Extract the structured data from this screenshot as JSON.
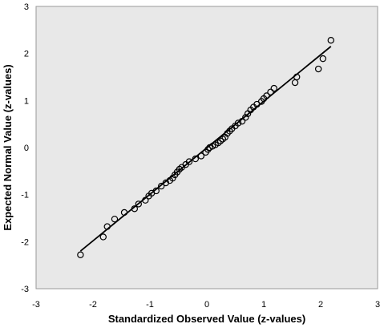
{
  "chart_data": {
    "type": "scatter",
    "xlabel": "Standardized Observed Value (z-values)",
    "ylabel": "Expected Normal Value (z-values)",
    "xlim": [
      -3,
      3
    ],
    "ylim": [
      -3,
      3
    ],
    "x_ticks": [
      "-3",
      "-2",
      "-1",
      "0",
      "1",
      "2",
      "3"
    ],
    "y_ticks": [
      "3",
      "2",
      "1",
      "0",
      "-1",
      "-2",
      "-3"
    ],
    "grid": false,
    "legend": "none",
    "colors": {
      "plot_background": "#e8e8e8",
      "marker_stroke": "#000000",
      "line": "#000000"
    },
    "reference_line": {
      "x": [
        -2.22,
        2.18
      ],
      "y": [
        -2.2,
        2.15
      ]
    },
    "series": [
      {
        "points": [
          [
            -2.22,
            -2.28
          ],
          [
            -1.82,
            -1.9
          ],
          [
            -1.75,
            -1.68
          ],
          [
            -1.62,
            -1.52
          ],
          [
            -1.45,
            -1.38
          ],
          [
            -1.27,
            -1.3
          ],
          [
            -1.2,
            -1.2
          ],
          [
            -1.08,
            -1.12
          ],
          [
            -1.02,
            -1.03
          ],
          [
            -0.97,
            -0.97
          ],
          [
            -0.89,
            -0.92
          ],
          [
            -0.8,
            -0.82
          ],
          [
            -0.72,
            -0.75
          ],
          [
            -0.65,
            -0.7
          ],
          [
            -0.6,
            -0.65
          ],
          [
            -0.56,
            -0.58
          ],
          [
            -0.52,
            -0.52
          ],
          [
            -0.48,
            -0.46
          ],
          [
            -0.44,
            -0.42
          ],
          [
            -0.37,
            -0.36
          ],
          [
            -0.31,
            -0.3
          ],
          [
            -0.2,
            -0.24
          ],
          [
            -0.1,
            -0.18
          ],
          [
            -0.02,
            -0.1
          ],
          [
            0.02,
            -0.04
          ],
          [
            0.05,
            0.0
          ],
          [
            0.1,
            0.03
          ],
          [
            0.15,
            0.06
          ],
          [
            0.2,
            0.1
          ],
          [
            0.24,
            0.14
          ],
          [
            0.28,
            0.18
          ],
          [
            0.32,
            0.22
          ],
          [
            0.36,
            0.3
          ],
          [
            0.4,
            0.35
          ],
          [
            0.44,
            0.4
          ],
          [
            0.5,
            0.46
          ],
          [
            0.55,
            0.52
          ],
          [
            0.62,
            0.56
          ],
          [
            0.68,
            0.64
          ],
          [
            0.72,
            0.72
          ],
          [
            0.77,
            0.8
          ],
          [
            0.82,
            0.86
          ],
          [
            0.88,
            0.92
          ],
          [
            0.96,
            0.98
          ],
          [
            1.0,
            1.04
          ],
          [
            1.05,
            1.1
          ],
          [
            1.12,
            1.18
          ],
          [
            1.18,
            1.26
          ],
          [
            1.55,
            1.38
          ],
          [
            1.58,
            1.5
          ],
          [
            1.96,
            1.67
          ],
          [
            2.04,
            1.89
          ],
          [
            2.18,
            2.28
          ]
        ]
      }
    ]
  }
}
